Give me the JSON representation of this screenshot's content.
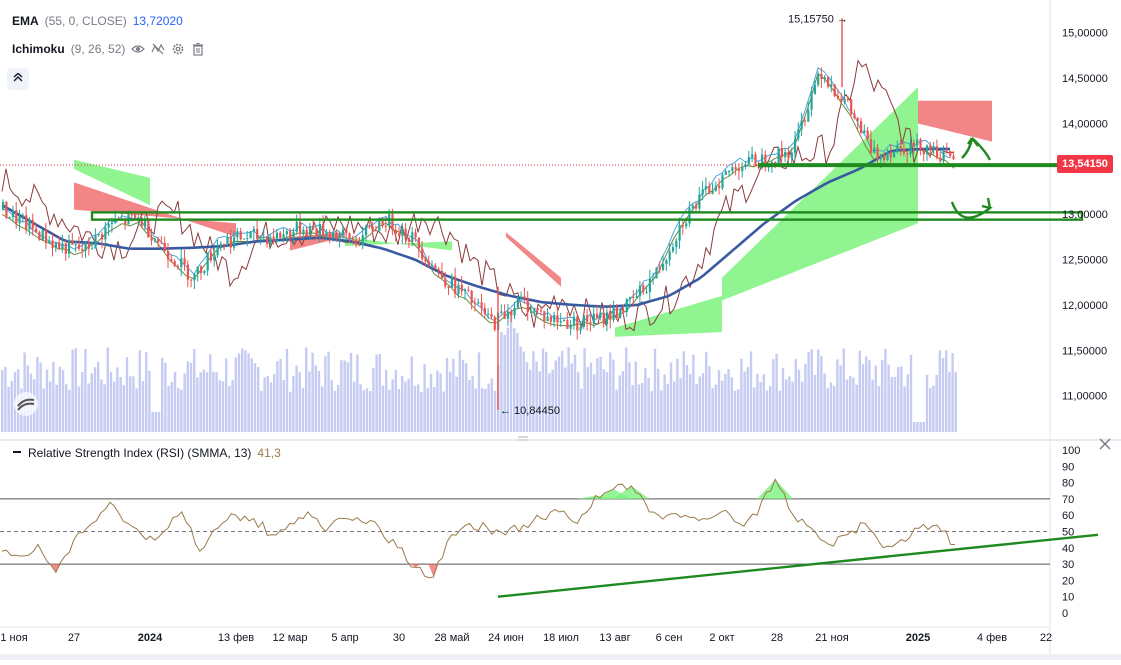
{
  "indicators": {
    "ema": {
      "name": "EMA",
      "params": "(55, 0, CLOSE)",
      "value": "13,72020"
    },
    "ichimoku": {
      "name": "Ichimoku",
      "params": "(9, 26, 52)"
    },
    "rsi": {
      "name": "Relative Strength Index (RSI) (SMMA, 13)",
      "value": "41,3"
    }
  },
  "price_scale": {
    "ticks": [
      "15,00000",
      "14,50000",
      "14,00000",
      "13,50000",
      "13,00000",
      "12,50000",
      "12,00000",
      "11,50000",
      "11,00000"
    ],
    "current_price": "13,54150"
  },
  "annotations": {
    "high": "15,15750",
    "low": "10,84450"
  },
  "rsi_scale": {
    "ticks": [
      "100",
      "90",
      "80",
      "70",
      "60",
      "50",
      "40",
      "30",
      "20",
      "10",
      "0"
    ]
  },
  "time_axis": {
    "labels": [
      "1 ноя",
      "27",
      "2024",
      "13 фев",
      "12 мар",
      "5 апр",
      "30",
      "28 май",
      "24 июн",
      "18 июл",
      "13 авг",
      "6 сен",
      "2 окт",
      "28",
      "21 ноя",
      "2025",
      "4 фев",
      "22"
    ]
  },
  "colors": {
    "ema": "#3a5aa0",
    "candle_up": "#26a69a",
    "candle_down": "#ef5350",
    "cloud_up": "#7cf27c",
    "cloud_down": "#f07070",
    "volume": "#c5cbf2",
    "rsi_line": "#9a7a4a",
    "drawing": "#1f8a1f",
    "price_tag": "#f23645"
  },
  "icons": [
    "eye-icon",
    "hide-icon",
    "settings-icon",
    "trash-icon",
    "collapse-icon",
    "close-icon",
    "tradingview-logo-icon"
  ],
  "chart_data": {
    "type": "candlestick",
    "symbol_values": "price",
    "time_labels": [
      "1 ноя",
      "27",
      "2024",
      "13 фев",
      "12 мар",
      "5 апр",
      "30",
      "28 май",
      "24 июн",
      "18 июл",
      "13 авг",
      "6 сен",
      "2 окт",
      "28",
      "21 ноя",
      "2025",
      "4 фев",
      "22"
    ],
    "price_ylim": [
      10.6,
      15.25
    ],
    "close_series": [
      13.05,
      12.85,
      12.65,
      12.6,
      12.9,
      12.95,
      12.6,
      12.3,
      12.7,
      12.75,
      12.75,
      12.85,
      12.8,
      12.7,
      12.95,
      12.75,
      12.35,
      12.1,
      11.8,
      12.05,
      11.85,
      11.8,
      11.85,
      12.0,
      12.35,
      12.95,
      13.3,
      13.55,
      13.6,
      13.7,
      14.6,
      14.2,
      13.65,
      13.75,
      13.75,
      13.54
    ],
    "ema_series": [
      13.1,
      12.9,
      12.7,
      12.68,
      12.62,
      12.62,
      12.63,
      12.65,
      12.7,
      12.72,
      12.74,
      12.7,
      12.62,
      12.5,
      12.32,
      12.2,
      12.1,
      12.03,
      12.0,
      11.98,
      12.0,
      12.1,
      12.3,
      12.6,
      12.9,
      13.15,
      13.35,
      13.5,
      13.7,
      13.72,
      13.72
    ],
    "cloud_spans": [
      {
        "color": "up",
        "from": "27",
        "to": "2024",
        "a": [
          13.6,
          13.4
        ],
        "b": [
          13.5,
          13.1
        ]
      },
      {
        "color": "down",
        "from": "27",
        "to": "13 фев",
        "a": [
          13.35,
          12.75
        ],
        "b": [
          13.05,
          12.9
        ]
      },
      {
        "color": "down",
        "from": "12 мар",
        "to": "5 апр",
        "a": [
          12.6,
          12.75
        ],
        "b": [
          12.75,
          12.8
        ]
      },
      {
        "color": "up",
        "from": "5 апр",
        "to": "28 май",
        "a": [
          12.75,
          12.6
        ],
        "b": [
          12.65,
          12.7
        ]
      },
      {
        "color": "down",
        "from": "24 июн",
        "to": "18 июл",
        "a": [
          12.8,
          12.3
        ],
        "b": [
          12.75,
          12.2
        ]
      },
      {
        "color": "up",
        "from": "13 авг",
        "to": "2 окт",
        "a": [
          11.75,
          12.1
        ],
        "b": [
          11.65,
          11.7
        ]
      },
      {
        "color": "up",
        "from": "2 окт",
        "to": "2025",
        "a": [
          12.3,
          14.4
        ],
        "b": [
          12.05,
          12.9
        ]
      },
      {
        "color": "down",
        "from": "2025",
        "to": "4 фев",
        "a": [
          14.0,
          13.8
        ],
        "b": [
          14.25,
          14.25
        ]
      }
    ],
    "horizontal_levels": [
      13.54,
      13.0,
      12.9
    ],
    "annotations": {
      "high": 15.1575,
      "low": 10.8445,
      "last": 13.5415
    },
    "rsi": {
      "ylim": [
        0,
        100
      ],
      "ticks": [
        100,
        90,
        80,
        70,
        60,
        50,
        40,
        30,
        20,
        10,
        0
      ],
      "bands": [
        30,
        50,
        70
      ],
      "values": [
        38,
        35,
        42,
        25,
        45,
        55,
        68,
        55,
        45,
        50,
        62,
        38,
        52,
        60,
        58,
        48,
        55,
        62,
        50,
        58,
        56,
        52,
        40,
        28,
        22,
        48,
        55,
        52,
        48,
        54,
        58,
        62,
        55,
        72,
        76,
        78,
        62,
        60,
        60,
        58,
        62,
        55,
        60,
        82,
        60,
        52,
        42,
        48,
        55,
        40,
        45,
        52,
        54,
        42
      ],
      "trendline": [
        10,
        48
      ],
      "value": 41.3
    }
  }
}
